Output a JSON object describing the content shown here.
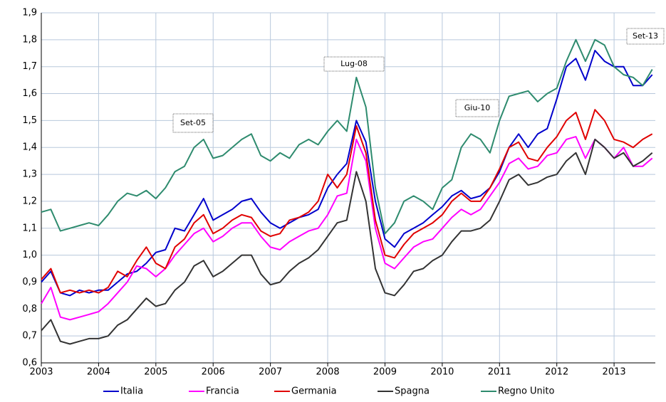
{
  "chart_data": {
    "type": "line",
    "x": [
      2003,
      2003.167,
      2003.333,
      2003.5,
      2003.667,
      2003.833,
      2004,
      2004.167,
      2004.333,
      2004.5,
      2004.667,
      2004.833,
      2005,
      2005.167,
      2005.333,
      2005.5,
      2005.667,
      2005.833,
      2006,
      2006.167,
      2006.333,
      2006.5,
      2006.667,
      2006.833,
      2007,
      2007.167,
      2007.333,
      2007.5,
      2007.667,
      2007.833,
      2008,
      2008.167,
      2008.333,
      2008.5,
      2008.667,
      2008.833,
      2009,
      2009.167,
      2009.333,
      2009.5,
      2009.667,
      2009.833,
      2010,
      2010.167,
      2010.333,
      2010.5,
      2010.667,
      2010.833,
      2011,
      2011.167,
      2011.333,
      2011.5,
      2011.667,
      2011.833,
      2012,
      2012.167,
      2012.333,
      2012.5,
      2012.667,
      2012.833,
      2013,
      2013.167,
      2013.333,
      2013.5,
      2013.667
    ],
    "series": [
      {
        "name": "Italia",
        "color": "#0000cc",
        "values": [
          0.9,
          0.94,
          0.86,
          0.85,
          0.87,
          0.86,
          0.87,
          0.87,
          0.9,
          0.93,
          0.94,
          0.97,
          1.01,
          1.02,
          1.1,
          1.09,
          1.15,
          1.21,
          1.13,
          1.15,
          1.17,
          1.2,
          1.21,
          1.16,
          1.12,
          1.1,
          1.12,
          1.14,
          1.15,
          1.17,
          1.25,
          1.3,
          1.34,
          1.5,
          1.42,
          1.2,
          1.06,
          1.03,
          1.08,
          1.1,
          1.12,
          1.15,
          1.18,
          1.22,
          1.24,
          1.21,
          1.22,
          1.25,
          1.31,
          1.4,
          1.45,
          1.4,
          1.45,
          1.47,
          1.58,
          1.7,
          1.73,
          1.65,
          1.76,
          1.72,
          1.7,
          1.7,
          1.63,
          1.63,
          1.67
        ]
      },
      {
        "name": "Francia",
        "color": "#ff00ff",
        "values": [
          0.82,
          0.88,
          0.77,
          0.76,
          0.77,
          0.78,
          0.79,
          0.82,
          0.86,
          0.9,
          0.96,
          0.95,
          0.92,
          0.95,
          1.0,
          1.04,
          1.08,
          1.1,
          1.05,
          1.07,
          1.1,
          1.12,
          1.12,
          1.07,
          1.03,
          1.02,
          1.05,
          1.07,
          1.09,
          1.1,
          1.15,
          1.22,
          1.23,
          1.43,
          1.35,
          1.1,
          0.97,
          0.95,
          0.99,
          1.03,
          1.05,
          1.06,
          1.1,
          1.14,
          1.17,
          1.15,
          1.17,
          1.22,
          1.27,
          1.34,
          1.36,
          1.32,
          1.33,
          1.37,
          1.38,
          1.43,
          1.44,
          1.36,
          1.43,
          1.4,
          1.36,
          1.4,
          1.33,
          1.33,
          1.36
        ]
      },
      {
        "name": "Germania",
        "color": "#e00000",
        "values": [
          0.91,
          0.95,
          0.86,
          0.87,
          0.86,
          0.87,
          0.86,
          0.88,
          0.94,
          0.92,
          0.98,
          1.03,
          0.97,
          0.95,
          1.03,
          1.06,
          1.12,
          1.15,
          1.08,
          1.1,
          1.13,
          1.15,
          1.14,
          1.09,
          1.07,
          1.08,
          1.13,
          1.14,
          1.16,
          1.2,
          1.3,
          1.25,
          1.3,
          1.48,
          1.38,
          1.13,
          1.0,
          0.99,
          1.04,
          1.08,
          1.1,
          1.12,
          1.15,
          1.2,
          1.23,
          1.2,
          1.2,
          1.25,
          1.32,
          1.4,
          1.42,
          1.36,
          1.35,
          1.4,
          1.44,
          1.5,
          1.53,
          1.43,
          1.54,
          1.5,
          1.43,
          1.42,
          1.4,
          1.43,
          1.45
        ]
      },
      {
        "name": "Spagna",
        "color": "#333333",
        "values": [
          0.72,
          0.76,
          0.68,
          0.67,
          0.68,
          0.69,
          0.69,
          0.7,
          0.74,
          0.76,
          0.8,
          0.84,
          0.81,
          0.82,
          0.87,
          0.9,
          0.96,
          0.98,
          0.92,
          0.94,
          0.97,
          1.0,
          1.0,
          0.93,
          0.89,
          0.9,
          0.94,
          0.97,
          0.99,
          1.02,
          1.07,
          1.12,
          1.13,
          1.31,
          1.2,
          0.95,
          0.86,
          0.85,
          0.89,
          0.94,
          0.95,
          0.98,
          1.0,
          1.05,
          1.09,
          1.09,
          1.1,
          1.13,
          1.2,
          1.28,
          1.3,
          1.26,
          1.27,
          1.29,
          1.3,
          1.35,
          1.38,
          1.3,
          1.43,
          1.4,
          1.36,
          1.38,
          1.33,
          1.35,
          1.38
        ]
      },
      {
        "name": "Regno Unito",
        "color": "#2e8b6e",
        "values": [
          1.16,
          1.17,
          1.09,
          1.1,
          1.11,
          1.12,
          1.11,
          1.15,
          1.2,
          1.23,
          1.22,
          1.24,
          1.21,
          1.25,
          1.31,
          1.33,
          1.4,
          1.43,
          1.36,
          1.37,
          1.4,
          1.43,
          1.45,
          1.37,
          1.35,
          1.38,
          1.36,
          1.41,
          1.43,
          1.41,
          1.46,
          1.5,
          1.46,
          1.66,
          1.55,
          1.25,
          1.08,
          1.12,
          1.2,
          1.22,
          1.2,
          1.17,
          1.25,
          1.28,
          1.4,
          1.45,
          1.43,
          1.38,
          1.5,
          1.59,
          1.6,
          1.61,
          1.57,
          1.6,
          1.62,
          1.72,
          1.8,
          1.72,
          1.8,
          1.78,
          1.7,
          1.67,
          1.66,
          1.63,
          1.69
        ]
      }
    ],
    "xlim": [
      2003,
      2013.72
    ],
    "xticks": [
      2003,
      2004,
      2005,
      2006,
      2007,
      2008,
      2009,
      2010,
      2011,
      2012,
      2013
    ],
    "ylim": [
      0.6,
      1.9
    ],
    "yticks": [
      {
        "value": 0.6,
        "label": "0,6"
      },
      {
        "value": 0.7,
        "label": "0,7"
      },
      {
        "value": 0.8,
        "label": "0,8"
      },
      {
        "value": 0.9,
        "label": "0,9"
      },
      {
        "value": 1.0,
        "label": "1,0"
      },
      {
        "value": 1.1,
        "label": "1,1"
      },
      {
        "value": 1.2,
        "label": "1,2"
      },
      {
        "value": 1.3,
        "label": "1,3"
      },
      {
        "value": 1.4,
        "label": "1,4"
      },
      {
        "value": 1.5,
        "label": "1,5"
      },
      {
        "value": 1.6,
        "label": "1,6"
      },
      {
        "value": 1.7,
        "label": "1,7"
      },
      {
        "value": 1.8,
        "label": "1,8"
      },
      {
        "value": 1.9,
        "label": "1,9"
      }
    ],
    "grid": true,
    "legend": "bottom",
    "annotations": [
      "Set-05",
      "Lug-08",
      "Giu-10",
      "Set-13"
    ]
  }
}
